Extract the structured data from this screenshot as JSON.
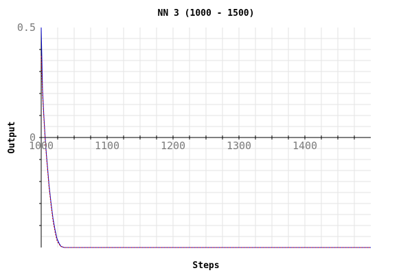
{
  "chart_data": {
    "type": "line",
    "title": "NN 3 (1000 - 1500)",
    "xlabel": "Steps",
    "ylabel": "Output",
    "xlim": [
      1000,
      1500
    ],
    "ylim": [
      -0.5,
      0.5
    ],
    "x_ticks": [
      1000,
      1100,
      1200,
      1300,
      1400
    ],
    "x_tick_labels": [
      "1000",
      "1100",
      "1200",
      "1300",
      "1400"
    ],
    "y_tick_labels": [
      {
        "value": 0.5,
        "label": "0.5"
      },
      {
        "value": 0,
        "label": "0"
      }
    ],
    "grid": true,
    "series": [
      {
        "style": "solid",
        "color": "#0000cc",
        "x": [
          1000,
          1002,
          1004,
          1006,
          1008,
          1010,
          1012,
          1015,
          1018,
          1021,
          1024,
          1027,
          1030,
          1035,
          1040,
          1050,
          1100,
          1200,
          1300,
          1400,
          1500
        ],
        "y": [
          0.5,
          0.22,
          0.1,
          0.0,
          -0.08,
          -0.15,
          -0.22,
          -0.3,
          -0.37,
          -0.42,
          -0.46,
          -0.48,
          -0.495,
          -0.5,
          -0.5,
          -0.5,
          -0.5,
          -0.5,
          -0.5,
          -0.5,
          -0.5
        ]
      },
      {
        "style": "dashed",
        "color": "#cc0000",
        "x": [
          1000,
          1002,
          1004,
          1006,
          1008,
          1010,
          1012,
          1015,
          1018,
          1021,
          1024,
          1027,
          1030,
          1035,
          1040,
          1050,
          1100,
          1200,
          1300,
          1400,
          1500
        ],
        "y": [
          0.37,
          0.2,
          0.09,
          -0.01,
          -0.09,
          -0.16,
          -0.23,
          -0.31,
          -0.38,
          -0.43,
          -0.47,
          -0.485,
          -0.495,
          -0.5,
          -0.5,
          -0.5,
          -0.5,
          -0.5,
          -0.5,
          -0.5,
          -0.5
        ]
      }
    ]
  }
}
